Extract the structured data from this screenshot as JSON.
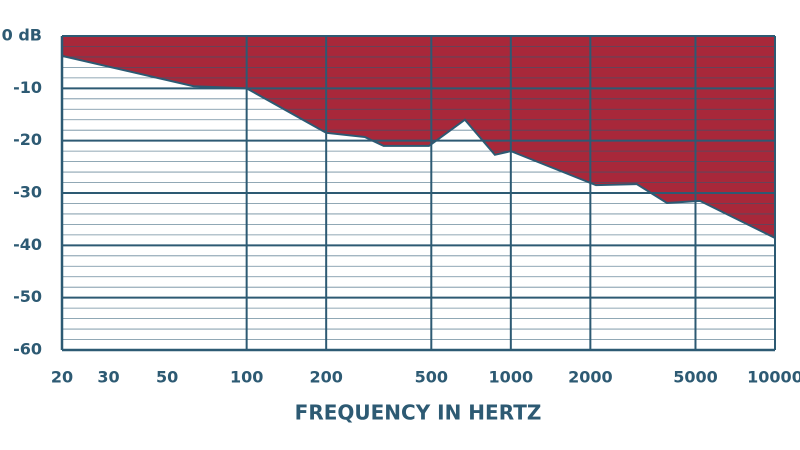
{
  "chart_data": {
    "type": "area",
    "x_label": "FREQUENCY IN HERTZ",
    "x": [
      20,
      63,
      100,
      200,
      280,
      330,
      490,
      670,
      870,
      1000,
      2100,
      3000,
      3900,
      5200,
      10000
    ],
    "series": [
      {
        "color": "#a8283a",
        "values": [
          -3.8,
          -9.6,
          -10,
          -18.5,
          -19.3,
          -21,
          -21,
          -16,
          -22.7,
          -22,
          -28.5,
          -28.3,
          -31.9,
          -31.5,
          -38.6
        ]
      }
    ],
    "xlim": [
      20,
      10000
    ],
    "xscale": "log",
    "xticks": [
      20,
      30,
      50,
      100,
      200,
      500,
      1000,
      2000,
      5000,
      10000
    ],
    "xgrid": [
      100,
      200,
      500,
      1000,
      2000,
      5000
    ],
    "ylim": [
      -60,
      0
    ],
    "yticks": [
      {
        "value": 0,
        "label": "0 dB"
      },
      -10,
      -20,
      -30,
      -40,
      -50,
      -60
    ],
    "minor_ystep": 2,
    "grid": true,
    "grid_color": "#2d5a73"
  }
}
